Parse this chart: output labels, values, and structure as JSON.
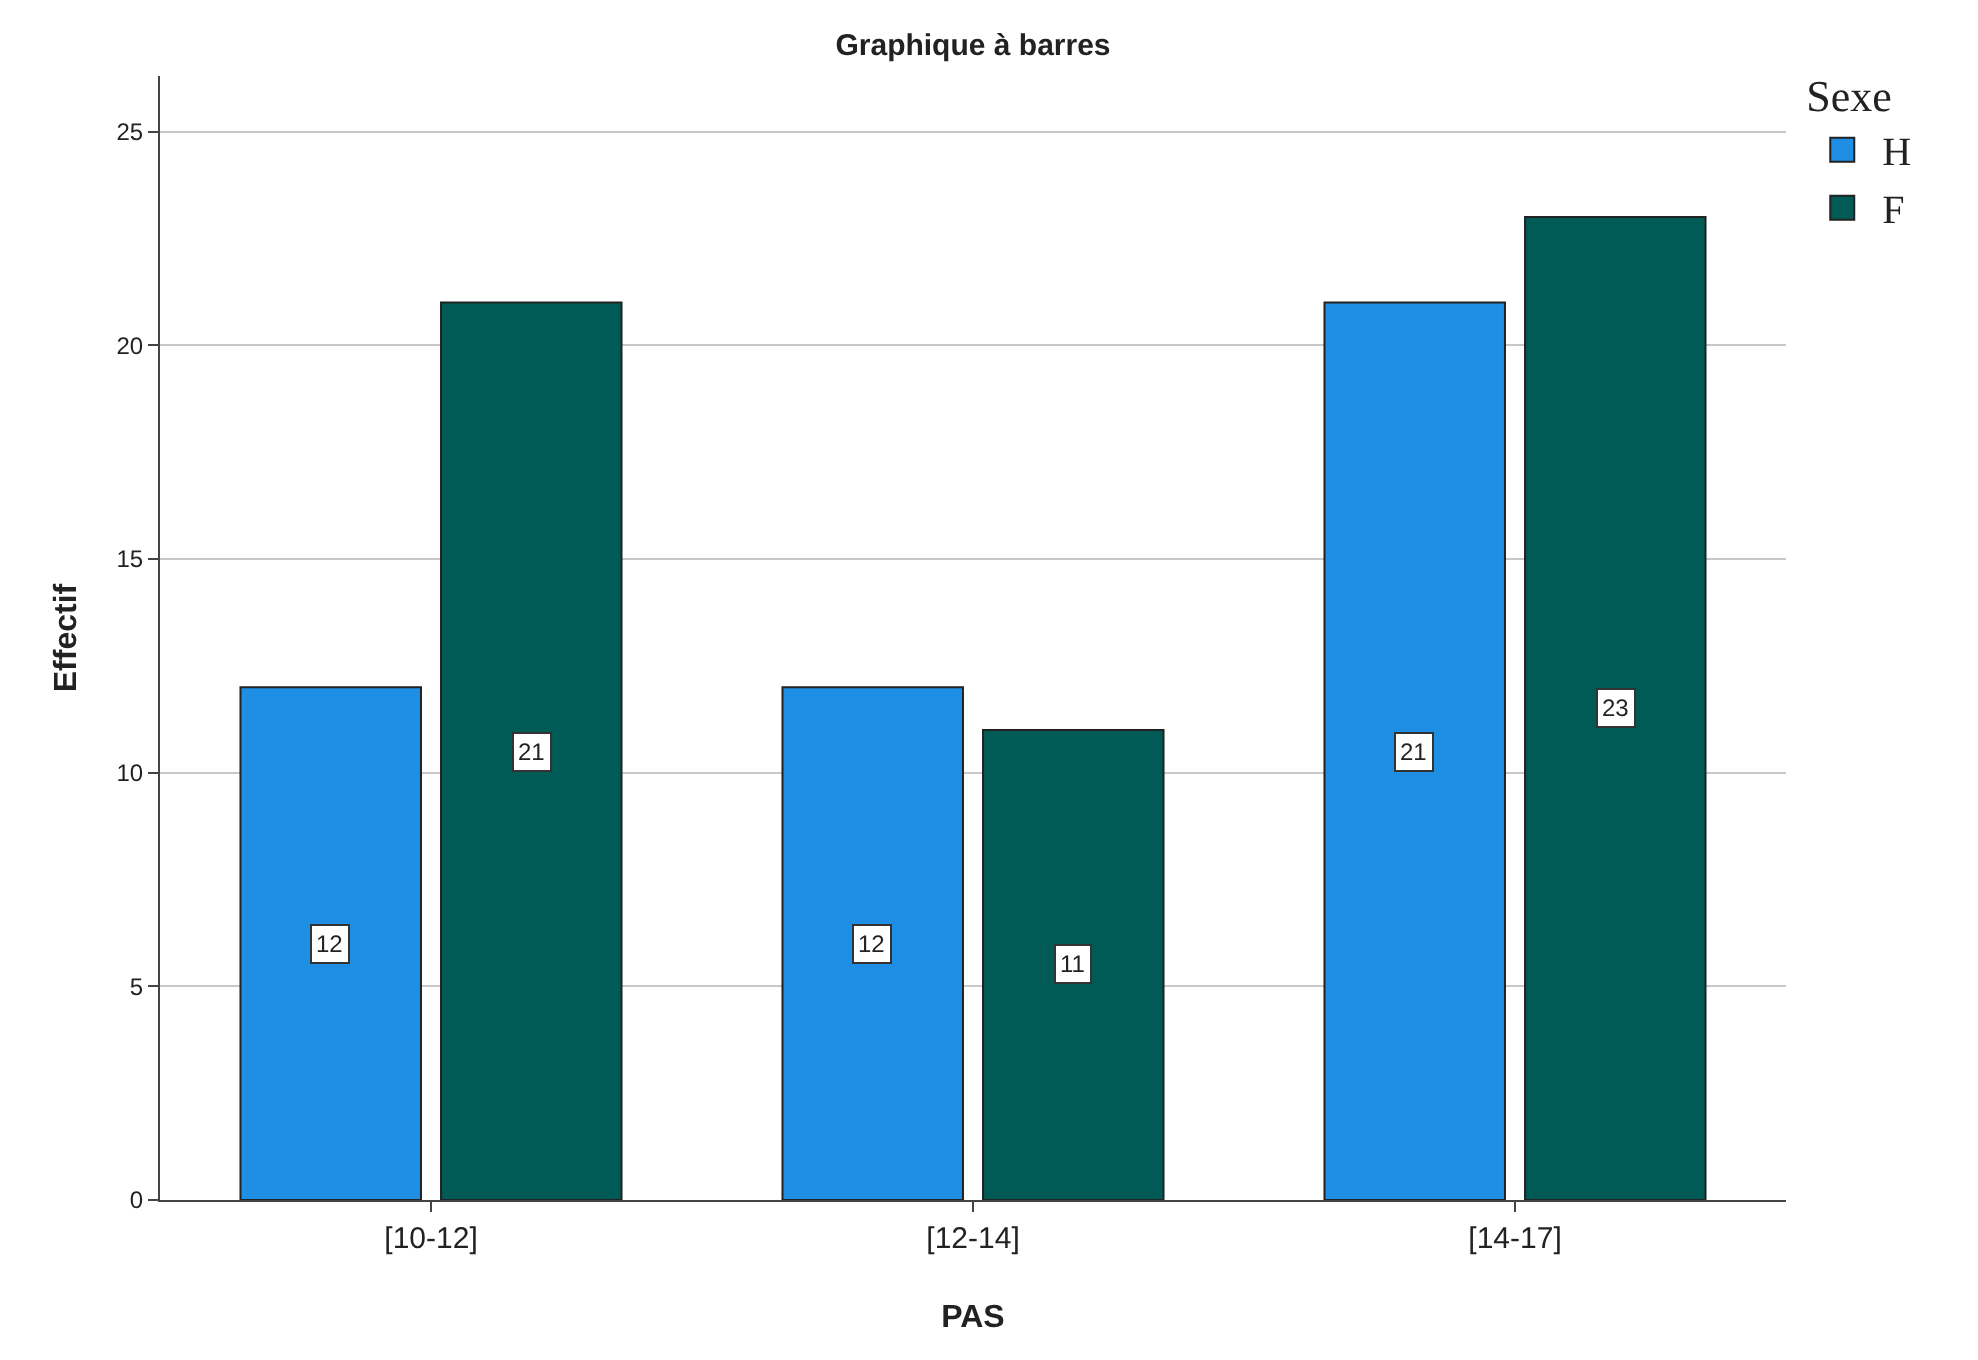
{
  "chart_data": {
    "type": "bar",
    "title": "Graphique à barres",
    "xlabel": "PAS",
    "ylabel": "Effectif",
    "legend_title": "Sexe",
    "categories": [
      "[10-12]",
      "[12-14]",
      "[14-17]"
    ],
    "series": [
      {
        "name": "H",
        "color": "#1f8fe5",
        "values": [
          12,
          12,
          21
        ]
      },
      {
        "name": "F",
        "color": "#005a55",
        "values": [
          21,
          11,
          23
        ]
      }
    ],
    "ylim": [
      0,
      26.3
    ],
    "yticks": [
      0,
      5,
      10,
      15,
      20,
      25
    ],
    "grid": "y",
    "legend": "top right",
    "data_labels": true
  }
}
